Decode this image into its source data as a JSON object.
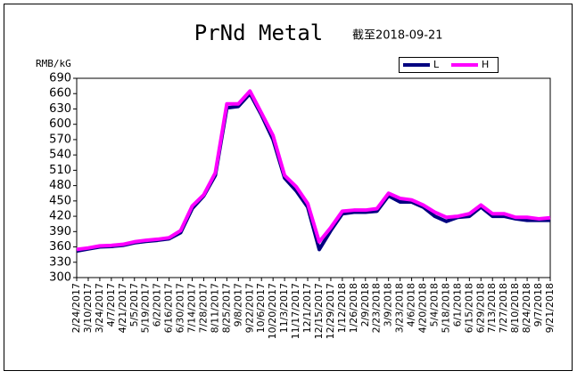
{
  "chart_data": {
    "type": "line",
    "title": "PrNd Metal",
    "subtitle": "截至2018-09-21",
    "y_label": "RMB/kG",
    "categories": [
      "2/24/2017",
      "3/10/2017",
      "3/24/2017",
      "4/7/2017",
      "4/21/2017",
      "5/5/2017",
      "5/19/2017",
      "6/2/2017",
      "6/16/2017",
      "6/30/2017",
      "7/14/2017",
      "7/28/2017",
      "8/11/2017",
      "8/25/2017",
      "9/8/2017",
      "9/22/2017",
      "10/6/2017",
      "10/20/2017",
      "11/3/2017",
      "11/17/2017",
      "12/1/2017",
      "12/15/2017",
      "12/29/2017",
      "1/12/2018",
      "1/26/2018",
      "2/9/2018",
      "2/23/2018",
      "3/9/2018",
      "3/23/2018",
      "4/6/2018",
      "4/20/2018",
      "5/4/2018",
      "5/18/2018",
      "6/1/2018",
      "6/15/2018",
      "6/29/2018",
      "7/13/2018",
      "7/27/2018",
      "8/10/2018",
      "8/24/2018",
      "9/7/2018",
      "9/21/2018"
    ],
    "series": [
      {
        "name": "L",
        "color": "#000080",
        "values": [
          352,
          356,
          360,
          361,
          363,
          368,
          371,
          373,
          376,
          388,
          435,
          460,
          500,
          632,
          635,
          660,
          618,
          570,
          495,
          470,
          438,
          355,
          392,
          425,
          428,
          428,
          430,
          460,
          448,
          448,
          438,
          420,
          410,
          418,
          420,
          438,
          420,
          420,
          415,
          412,
          412,
          412
        ]
      },
      {
        "name": "H",
        "color": "#ff00ff",
        "values": [
          355,
          358,
          362,
          363,
          365,
          370,
          373,
          375,
          378,
          392,
          440,
          462,
          505,
          640,
          640,
          665,
          622,
          578,
          500,
          478,
          445,
          370,
          398,
          430,
          432,
          432,
          435,
          465,
          455,
          452,
          442,
          428,
          418,
          420,
          425,
          442,
          425,
          425,
          418,
          418,
          415,
          417
        ]
      }
    ],
    "ylim": [
      300,
      690
    ],
    "yticks": [
      300,
      330,
      360,
      390,
      420,
      450,
      480,
      510,
      540,
      570,
      600,
      630,
      660,
      690
    ],
    "legend": "top-right"
  }
}
